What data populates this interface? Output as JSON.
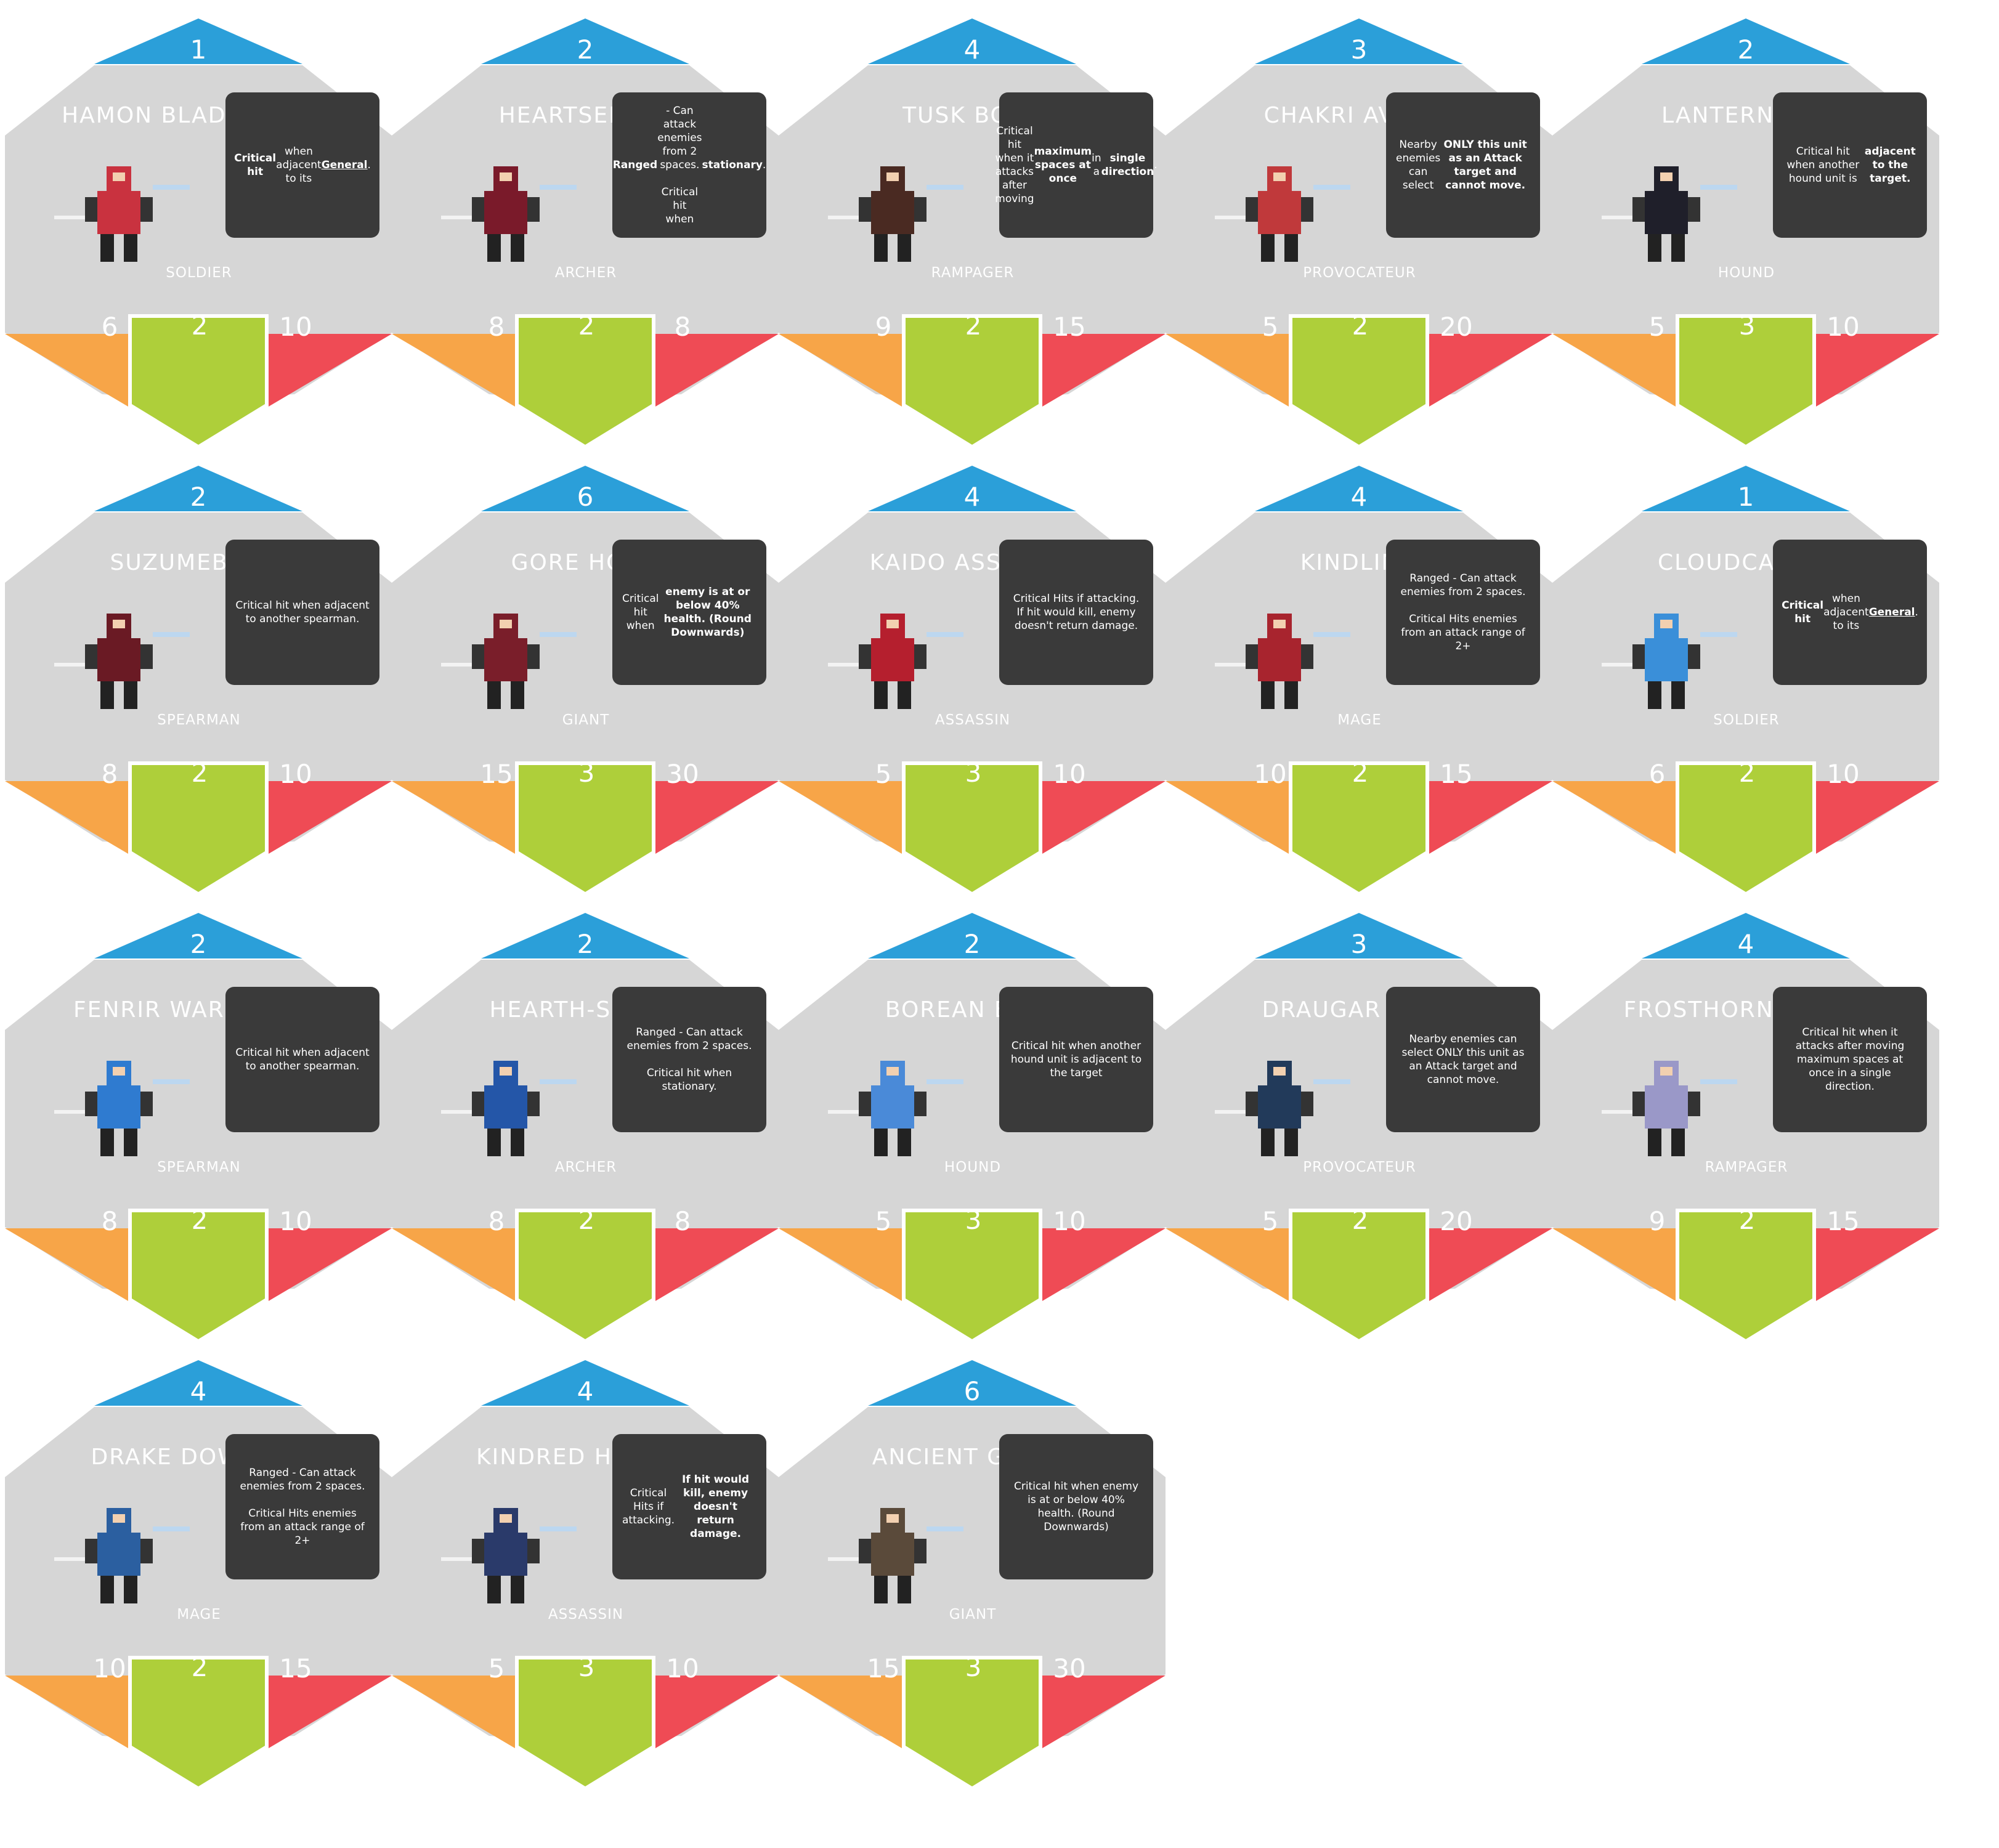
{
  "colors": {
    "card": "#d6d6d6",
    "cost": "#2b9fd9",
    "attack": "#f7a548",
    "move": "#aecf3a",
    "health": "#ef4b55",
    "ability_box": "#3a3a3a"
  },
  "cards": [
    {
      "name": "HAMON BLADESEEKER",
      "cost": "1",
      "class": "SOLDIER",
      "attack": "6",
      "move": "2",
      "health": "10",
      "ability_html": "<b>Critical hit</b> when adjacent to its <u>General</u>.",
      "sprite": "swordsman-sprite",
      "tint": "#c9323f"
    },
    {
      "name": "HEARTSEEKER",
      "cost": "2",
      "class": "ARCHER",
      "attack": "8",
      "move": "2",
      "health": "8",
      "ability_html": "<b>Ranged</b> - Can attack enemies from 2 spaces.<br><br>Critical hit when <b>stationary</b>.",
      "sprite": "archer-sprite",
      "tint": "#7a1a2a"
    },
    {
      "name": "TUSK BOAR",
      "cost": "4",
      "class": "RAMPAGER",
      "attack": "9",
      "move": "2",
      "health": "15",
      "ability_html": "Critical hit when it attacks after moving <b>maximum spaces at once</b> in a <b>single direction</b>.",
      "sprite": "boar-sprite",
      "tint": "#4a2a22"
    },
    {
      "name": "CHAKRI AVATAR",
      "cost": "3",
      "class": "PROVOCATEUR",
      "attack": "5",
      "move": "2",
      "health": "20",
      "ability_html": "Nearby enemies can select <b>ONLY this unit as an Attack target and cannot move.</b>",
      "sprite": "monk-sprite",
      "tint": "#c0393b"
    },
    {
      "name": "LANTERN FOX",
      "cost": "2",
      "class": "HOUND",
      "attack": "5",
      "move": "3",
      "health": "10",
      "ability_html": "Critical hit when another hound unit is <b>adjacent to the target.</b>",
      "sprite": "fox-sprite",
      "tint": "#1f1f2a"
    },
    {
      "name": "SUZUMEBACHI",
      "cost": "2",
      "class": "SPEARMAN",
      "attack": "8",
      "move": "2",
      "health": "10",
      "ability_html": "Critical hit when adjacent to another spearman.",
      "sprite": "spearman-sprite",
      "tint": "#6a1a24"
    },
    {
      "name": "GORE HORN",
      "cost": "6",
      "class": "GIANT",
      "attack": "15",
      "move": "3",
      "health": "30",
      "ability_html": "Critical hit when <b>enemy is at or below 40% health. (Round Downwards)</b>",
      "sprite": "ogre-sprite",
      "tint": "#7a1e2a"
    },
    {
      "name": "KAIDO ASSASSIN",
      "cost": "4",
      "class": "ASSASSIN",
      "attack": "5",
      "move": "3",
      "health": "10",
      "ability_html": "Critical Hits if attacking. If hit would kill, enemy doesn't return damage.",
      "sprite": "assassin-sprite",
      "tint": "#b51f2e"
    },
    {
      "name": "KINDLING",
      "cost": "4",
      "class": "MAGE",
      "attack": "10",
      "move": "2",
      "health": "15",
      "ability_html": "Ranged - Can attack enemies from 2 spaces.<br><br>Critical Hits enemies from an attack range of 2+",
      "sprite": "fire-mage-sprite",
      "tint": "#a8242e"
    },
    {
      "name": "CLOUDCALLER",
      "cost": "1",
      "class": "SOLDIER",
      "attack": "6",
      "move": "2",
      "health": "10",
      "ability_html": "<b>Critical hit</b> when adjacent to its <u>General</u>.",
      "sprite": "storm-soldier-sprite",
      "tint": "#3a8fd9"
    },
    {
      "name": "FENRIR WARMASTER",
      "cost": "2",
      "class": "SPEARMAN",
      "attack": "8",
      "move": "2",
      "health": "10",
      "ability_html": "Critical hit when adjacent to another spearman.",
      "sprite": "warmaster-sprite",
      "tint": "#2f7bd0"
    },
    {
      "name": "HEARTH-SISTER",
      "cost": "2",
      "class": "ARCHER",
      "attack": "8",
      "move": "2",
      "health": "8",
      "ability_html": "Ranged - Can attack enemies from 2 spaces.<br><br>Critical hit when stationary.",
      "sprite": "sister-sprite",
      "tint": "#2456a8"
    },
    {
      "name": "BOREAN BEAR",
      "cost": "2",
      "class": "HOUND",
      "attack": "5",
      "move": "3",
      "health": "10",
      "ability_html": "Critical hit when another hound unit is adjacent to the target",
      "sprite": "bear-sprite",
      "tint": "#4a8ad8"
    },
    {
      "name": "DRAUGAR LORD",
      "cost": "3",
      "class": "PROVOCATEUR",
      "attack": "5",
      "move": "2",
      "health": "20",
      "ability_html": "Nearby enemies can select ONLY this unit as an Attack target and cannot move.",
      "sprite": "draugar-sprite",
      "tint": "#223a5a"
    },
    {
      "name": "FROSTHORN RHYNO",
      "cost": "4",
      "class": "RAMPAGER",
      "attack": "9",
      "move": "2",
      "health": "15",
      "ability_html": "Critical hit when it attacks after moving maximum spaces at once in a single direction.",
      "sprite": "rhyno-sprite",
      "tint": "#9a98c8"
    },
    {
      "name": "DRAKE DOWAGER",
      "cost": "4",
      "class": "MAGE",
      "attack": "10",
      "move": "2",
      "health": "15",
      "ability_html": "Ranged - Can attack enemies from 2 spaces.<br><br>Critical Hits enemies from an attack range of 2+",
      "sprite": "dowager-sprite",
      "tint": "#2b5fa0"
    },
    {
      "name": "KINDRED HUNTER",
      "cost": "4",
      "class": "ASSASSIN",
      "attack": "5",
      "move": "3",
      "health": "10",
      "ability_html": "Critical Hits if attacking. <b>If hit would kill, enemy doesn't return damage.</b>",
      "sprite": "hunter-sprite",
      "tint": "#2a3a6a"
    },
    {
      "name": "ANCIENT GROVE",
      "cost": "6",
      "class": "GIANT",
      "attack": "15",
      "move": "3",
      "health": "30",
      "ability_html": "Critical hit when enemy is at or below 40% health. (Round Downwards)",
      "sprite": "treant-sprite",
      "tint": "#5a4a3a"
    }
  ]
}
